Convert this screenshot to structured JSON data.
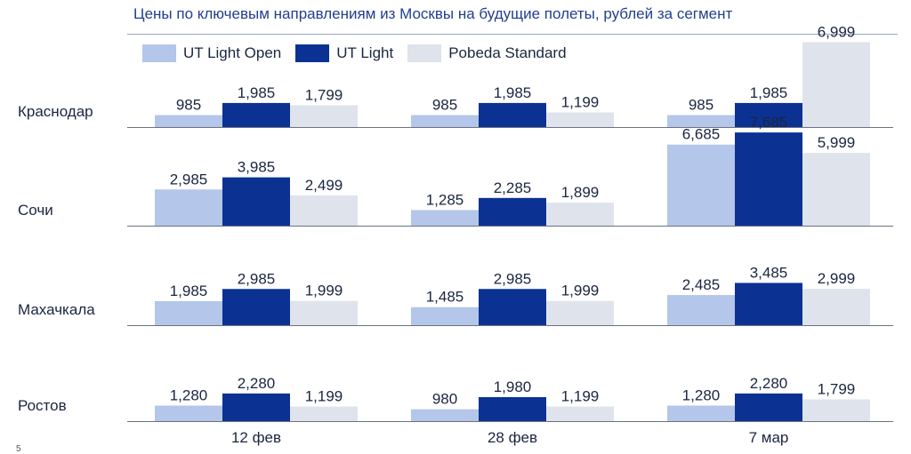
{
  "colors": {
    "ut_light_open": "#b4c6e9",
    "ut_light": "#0b3293",
    "pobeda_standard": "#dfe3ec",
    "baseline": "#6b7280",
    "text": "#1a2540",
    "title": "#1f3f8f"
  },
  "footnote": "5",
  "chart_data": {
    "type": "bar",
    "orientation": "vertical-grouped-by-row",
    "title": "Цены по ключевым направлениям из Москвы на будущие полеты, рублей за сегмент",
    "legend_position": "top-left",
    "grid": false,
    "columns": [
      "12 фев",
      "28 фев",
      "7 мар"
    ],
    "series": [
      {
        "name": "UT Light Open",
        "color_key": "ut_light_open"
      },
      {
        "name": "UT Light",
        "color_key": "ut_light"
      },
      {
        "name": "Pobeda Standard",
        "color_key": "pobeda_standard"
      }
    ],
    "rows": [
      {
        "label": "Краснодар",
        "values": [
          [
            985,
            1985,
            1799
          ],
          [
            985,
            1985,
            1199
          ],
          [
            985,
            1985,
            6999
          ]
        ],
        "value_labels": [
          [
            "985",
            "1,985",
            "1,799"
          ],
          [
            "985",
            "1,985",
            "1,199"
          ],
          [
            "985",
            "1,985",
            "6,999"
          ]
        ]
      },
      {
        "label": "Сочи",
        "values": [
          [
            2985,
            3985,
            2499
          ],
          [
            1285,
            2285,
            1899
          ],
          [
            6685,
            7685,
            5999
          ]
        ],
        "value_labels": [
          [
            "2,985",
            "3,985",
            "2,499"
          ],
          [
            "1,285",
            "2,285",
            "1,899"
          ],
          [
            "6,685",
            "7,685",
            "5,999"
          ]
        ]
      },
      {
        "label": "Махачкала",
        "values": [
          [
            1985,
            2985,
            1999
          ],
          [
            1485,
            2985,
            1999
          ],
          [
            2485,
            3485,
            2999
          ]
        ],
        "value_labels": [
          [
            "1,985",
            "2,985",
            "1,999"
          ],
          [
            "1,485",
            "2,985",
            "1,999"
          ],
          [
            "2,485",
            "3,485",
            "2,999"
          ]
        ]
      },
      {
        "label": "Ростов",
        "values": [
          [
            1280,
            2280,
            1199
          ],
          [
            980,
            1980,
            1199
          ],
          [
            1280,
            2280,
            1799
          ]
        ],
        "value_labels": [
          [
            "1,280",
            "2,280",
            "1,199"
          ],
          [
            "980",
            "1,980",
            "1,199"
          ],
          [
            "1,280",
            "2,280",
            "1,799"
          ]
        ]
      }
    ]
  }
}
